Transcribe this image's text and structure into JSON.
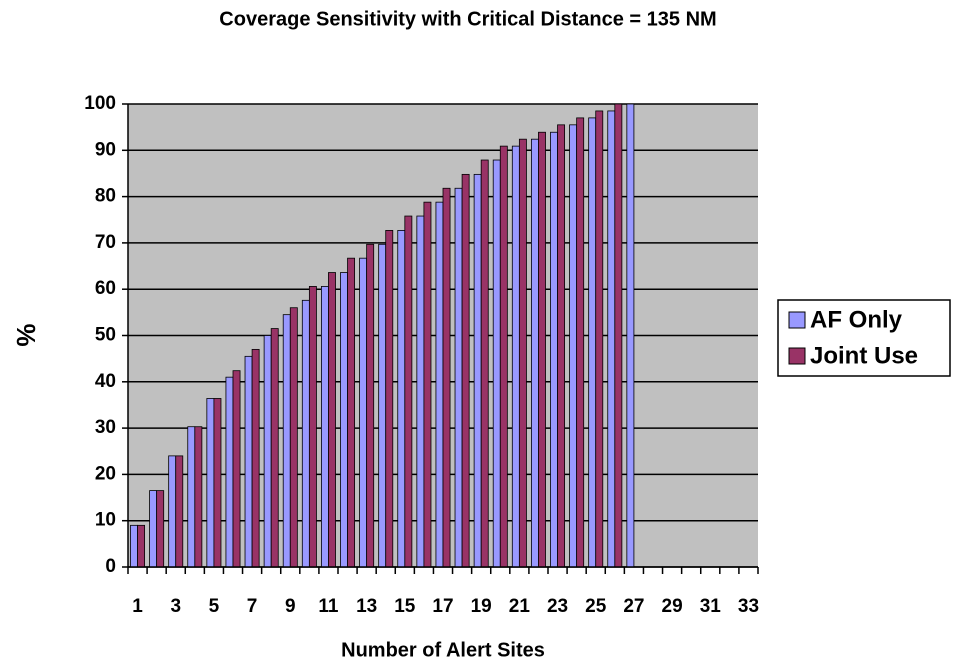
{
  "chart_data": {
    "type": "bar",
    "title": "Coverage Sensitivity with Critical Distance = 135 NM",
    "x_label": "Number of Alert Sites",
    "y_label": "%",
    "categories": [
      "1",
      null,
      "3",
      null,
      "5",
      null,
      "7",
      null,
      "9",
      null,
      "11",
      null,
      "13",
      null,
      "15",
      null,
      "17",
      null,
      "19",
      null,
      "21",
      null,
      "23",
      null,
      "25",
      null,
      "27",
      null,
      "29",
      null,
      "31",
      null,
      "33"
    ],
    "series": [
      {
        "name": "AF Only",
        "color": "#9999ff",
        "values": [
          9,
          16.5,
          24,
          30.3,
          36.4,
          41,
          45.5,
          50,
          54.5,
          57.6,
          60.6,
          63.6,
          66.7,
          69.7,
          72.7,
          75.8,
          78.8,
          81.8,
          84.8,
          87.9,
          90.9,
          92.4,
          93.9,
          95.5,
          97,
          98.5,
          100,
          null,
          null,
          null,
          null,
          null,
          null
        ]
      },
      {
        "name": "Joint Use",
        "color": "#993366",
        "values": [
          9,
          16.5,
          24,
          30.3,
          36.4,
          42.4,
          47,
          51.5,
          56,
          60.6,
          63.6,
          66.7,
          69.7,
          72.7,
          75.8,
          78.8,
          81.8,
          84.8,
          87.9,
          90.9,
          92.4,
          93.9,
          95.5,
          97,
          98.5,
          100,
          null,
          null,
          null,
          null,
          null,
          null,
          null
        ]
      }
    ],
    "ylim": [
      0,
      100
    ],
    "yticks": [
      0,
      10,
      20,
      30,
      40,
      50,
      60,
      70,
      80,
      90,
      100
    ],
    "grid": true,
    "legend": "right",
    "plot_background": "#c0c0c0"
  }
}
